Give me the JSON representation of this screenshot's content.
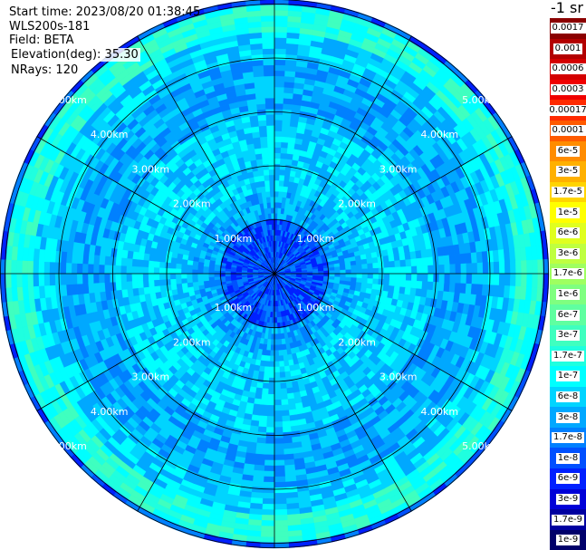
{
  "header": {
    "start_time": "Start time: 2023/08/20 01:38:45",
    "instrument": "WLS200s-181",
    "field": "Field: BETA",
    "elevation": "Elevation(deg): 35.30",
    "nrays": "NRays: 120"
  },
  "colorbar": {
    "title": "-1 sr",
    "segments": [
      {
        "label": "0.0017",
        "color": "#8b0000"
      },
      {
        "label": "0.001",
        "color": "#b30000"
      },
      {
        "label": "0.0006",
        "color": "#d40000"
      },
      {
        "label": "0.0003",
        "color": "#f00000"
      },
      {
        "label": "0.00017",
        "color": "#ff2a00"
      },
      {
        "label": "0.0001",
        "color": "#ff5a00"
      },
      {
        "label": "6e-5",
        "color": "#ff8c00"
      },
      {
        "label": "3e-5",
        "color": "#ffb000"
      },
      {
        "label": "1.7e-5",
        "color": "#ffd400"
      },
      {
        "label": "1e-5",
        "color": "#ffff00"
      },
      {
        "label": "6e-6",
        "color": "#e0ff1f"
      },
      {
        "label": "3e-6",
        "color": "#bfff40"
      },
      {
        "label": "1.7e-6",
        "color": "#9fff60"
      },
      {
        "label": "1e-6",
        "color": "#7fff80"
      },
      {
        "label": "6e-7",
        "color": "#5fffa0"
      },
      {
        "label": "3e-7",
        "color": "#3fffbf"
      },
      {
        "label": "1.7e-7",
        "color": "#1fffdf"
      },
      {
        "label": "1e-7",
        "color": "#00ffff"
      },
      {
        "label": "6e-8",
        "color": "#00d4ff"
      },
      {
        "label": "3e-8",
        "color": "#00a8ff"
      },
      {
        "label": "1.7e-8",
        "color": "#0080ff"
      },
      {
        "label": "1e-8",
        "color": "#0050ff"
      },
      {
        "label": "6e-9",
        "color": "#0020ff"
      },
      {
        "label": "3e-9",
        "color": "#0000d8"
      },
      {
        "label": "1.7e-9",
        "color": "#0000a0"
      },
      {
        "label": "1e-9",
        "color": "#00006a"
      }
    ]
  },
  "chart_data": {
    "type": "heatmap",
    "projection": "polar (PPI scan)",
    "field": "BETA",
    "elevation_deg": 35.3,
    "n_rays": 120,
    "range_rings_km": [
      1,
      2,
      3,
      4,
      5
    ],
    "range_ring_labels": [
      "1.00km",
      "2.00km",
      "3.00km",
      "4.00km",
      "5.00km"
    ],
    "max_range_km": 5.0,
    "spoke_angles_deg": [
      0,
      30,
      60,
      90,
      120,
      150,
      180,
      210,
      240,
      270,
      300,
      330
    ],
    "radial_profile": {
      "range_km": [
        0.0,
        0.5,
        1.0,
        1.5,
        2.0,
        2.5,
        3.0,
        3.5,
        4.0,
        4.5,
        5.0
      ],
      "typical_level": [
        "1e-8",
        "1e-8",
        "3e-8",
        "6e-8",
        "6e-8",
        "6e-8",
        "3e-8",
        "3e-8",
        "6e-8",
        "1.7e-7",
        "1e-8"
      ]
    },
    "grid": true
  }
}
